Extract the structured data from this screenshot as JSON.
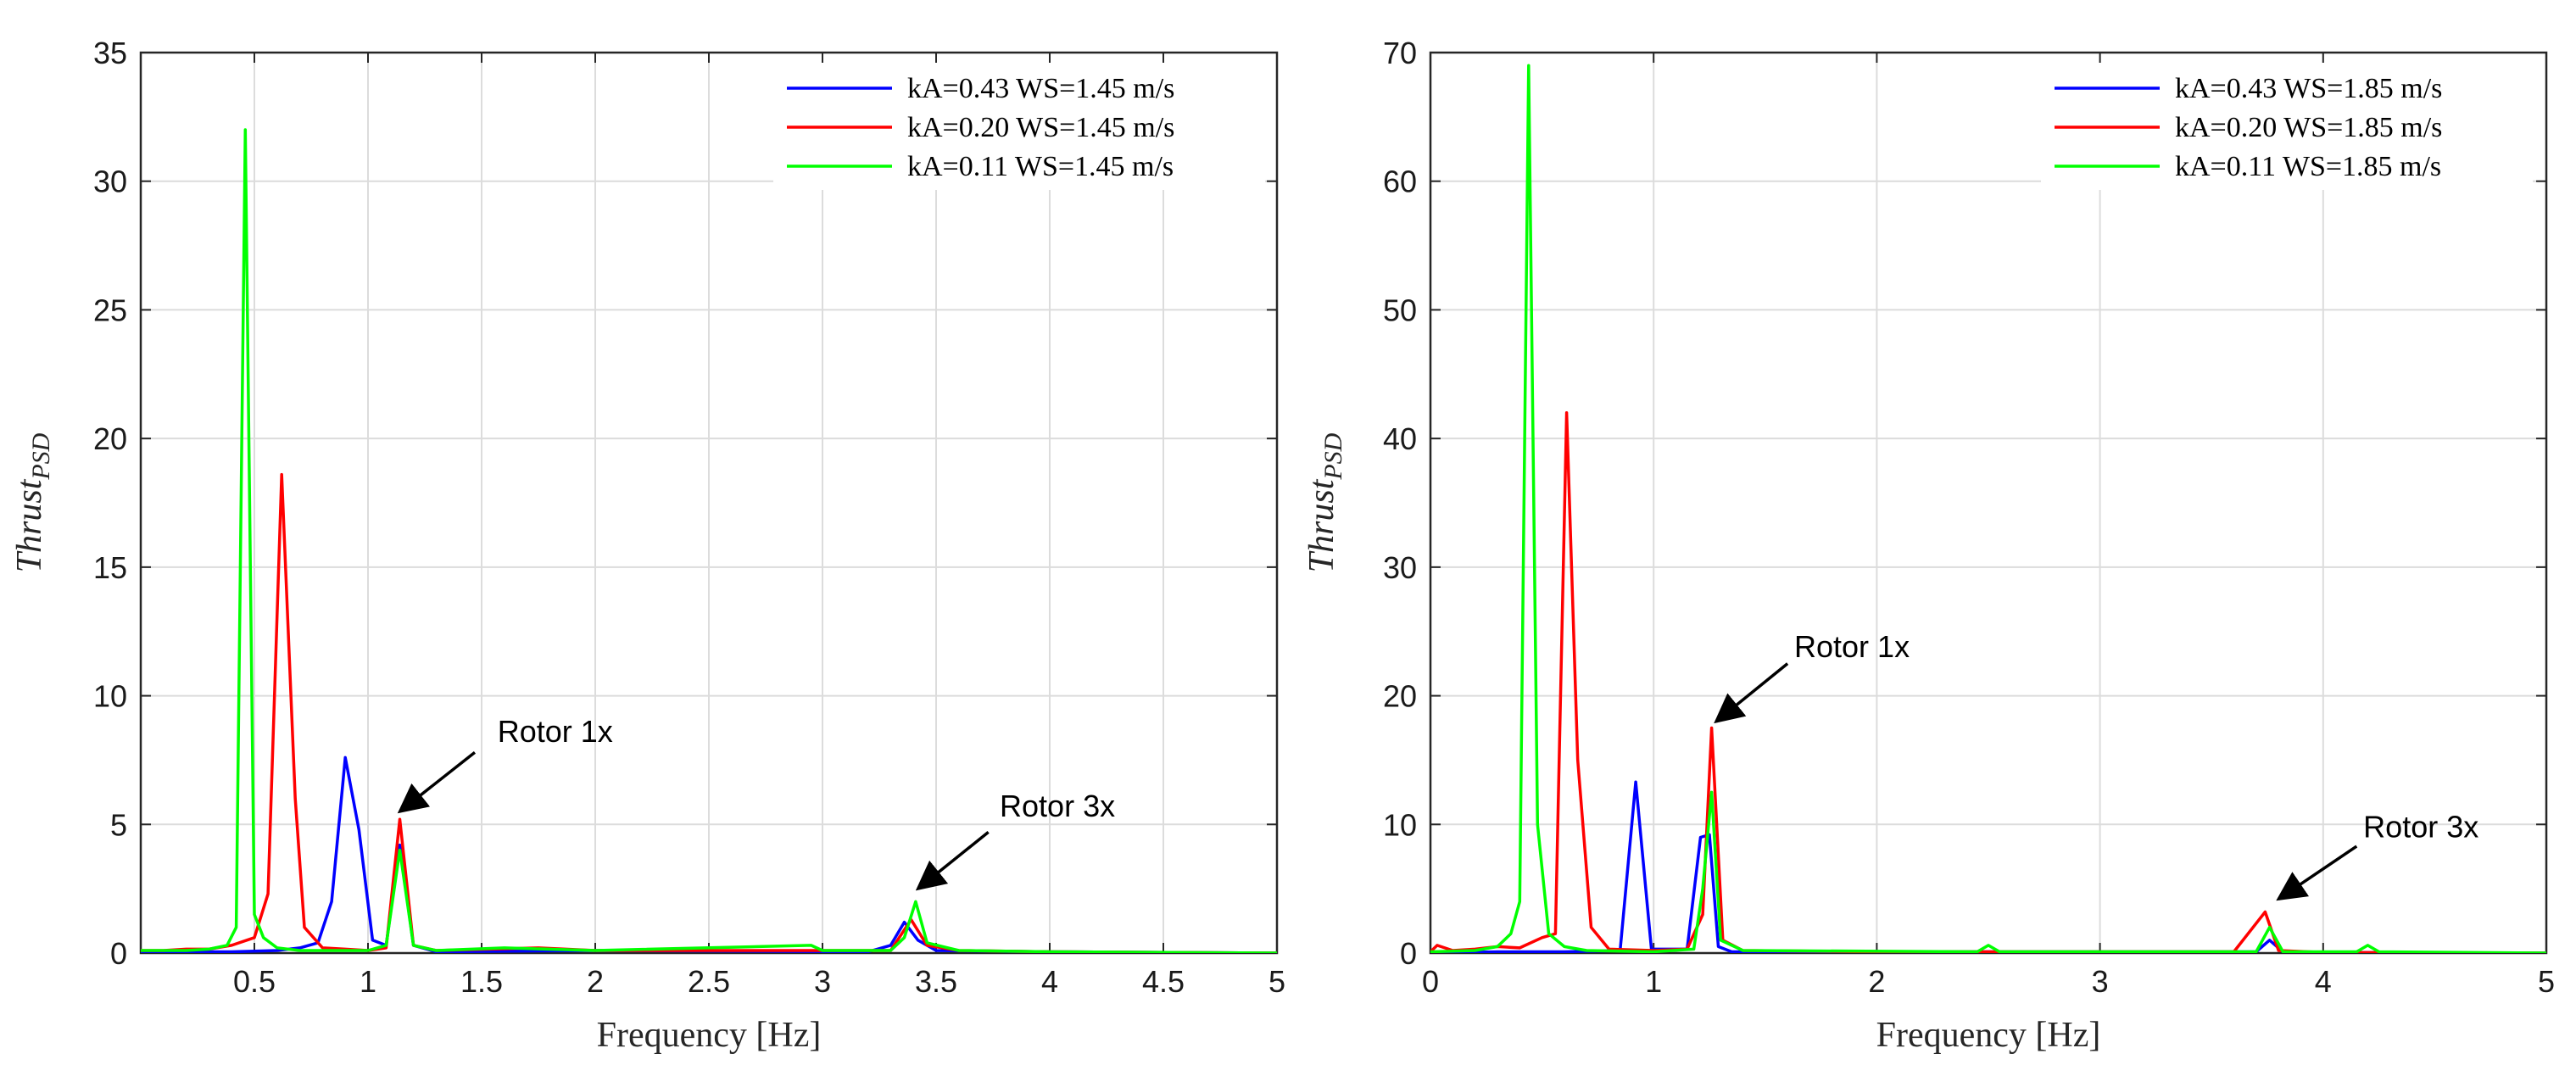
{
  "chart_data": [
    {
      "type": "line",
      "xlabel": "Frequency [Hz]",
      "ylabel": "Thrust",
      "ylabel_subscript": "PSD",
      "xlim": [
        0,
        5
      ],
      "ylim": [
        0,
        35
      ],
      "xticks": [
        0.5,
        1,
        1.5,
        2,
        2.5,
        3,
        3.5,
        4,
        4.5,
        5
      ],
      "xtick_labels": [
        "0.5",
        "1",
        "1.5",
        "2",
        "2.5",
        "3",
        "3.5",
        "4",
        "4.5",
        "5"
      ],
      "yticks": [
        0,
        5,
        10,
        15,
        20,
        25,
        30,
        35
      ],
      "ytick_labels": [
        "0",
        "5",
        "10",
        "15",
        "20",
        "25",
        "30",
        "35"
      ],
      "grid": true,
      "legend_position": "top-right",
      "series": [
        {
          "name": "kA=0.43 WS=1.45 m/s",
          "color": "#0000ff",
          "x": [
            0,
            0.2,
            0.4,
            0.6,
            0.7,
            0.78,
            0.84,
            0.9,
            0.96,
            1.02,
            1.08,
            1.14,
            1.2,
            1.3,
            2.0,
            3.2,
            3.3,
            3.36,
            3.42,
            3.5,
            4.0,
            5.0
          ],
          "y": [
            0,
            0.05,
            0.05,
            0.1,
            0.2,
            0.4,
            2.0,
            7.6,
            4.8,
            0.5,
            0.3,
            4.2,
            0.3,
            0.05,
            0.1,
            0.05,
            0.3,
            1.2,
            0.5,
            0.1,
            0.05,
            0
          ]
        },
        {
          "name": "kA=0.20 WS=1.45 m/s",
          "color": "#ff0000",
          "x": [
            0,
            0.1,
            0.2,
            0.3,
            0.4,
            0.5,
            0.56,
            0.62,
            0.68,
            0.72,
            0.8,
            0.9,
            1.0,
            1.08,
            1.14,
            1.2,
            1.3,
            1.75,
            2.0,
            3.3,
            3.39,
            3.46,
            3.6,
            4.0,
            5.0
          ],
          "y": [
            0.1,
            0.1,
            0.15,
            0.15,
            0.3,
            0.6,
            2.3,
            18.6,
            6.0,
            1.0,
            0.2,
            0.15,
            0.1,
            0.2,
            5.2,
            0.3,
            0.1,
            0.2,
            0.1,
            0.1,
            1.3,
            0.3,
            0.1,
            0.05,
            0
          ]
        },
        {
          "name": "kA=0.11 WS=1.45 m/s",
          "color": "#00ff00",
          "x": [
            0,
            0.2,
            0.3,
            0.38,
            0.42,
            0.46,
            0.5,
            0.54,
            0.6,
            0.7,
            1.0,
            1.08,
            1.14,
            1.2,
            1.3,
            1.6,
            2.0,
            2.95,
            3.0,
            3.3,
            3.36,
            3.41,
            3.46,
            3.6,
            4.0,
            5.0
          ],
          "y": [
            0.1,
            0.1,
            0.15,
            0.3,
            1.0,
            32.0,
            1.5,
            0.6,
            0.2,
            0.1,
            0.1,
            0.3,
            4.0,
            0.3,
            0.1,
            0.2,
            0.1,
            0.3,
            0.1,
            0.1,
            0.6,
            2.0,
            0.4,
            0.1,
            0.05,
            0
          ]
        }
      ],
      "annotations": [
        {
          "text": "Rotor 1x",
          "text_x": 1.57,
          "text_y": 8.2,
          "arrow_from": [
            1.47,
            7.8
          ],
          "arrow_to": [
            1.14,
            5.5
          ]
        },
        {
          "text": "Rotor 3x",
          "text_x": 3.78,
          "text_y": 5.3,
          "arrow_from": [
            3.73,
            4.7
          ],
          "arrow_to": [
            3.42,
            2.5
          ]
        }
      ]
    },
    {
      "type": "line",
      "xlabel": "Frequency [Hz]",
      "ylabel": "Thrust",
      "ylabel_subscript": "PSD",
      "xlim": [
        0,
        5
      ],
      "ylim": [
        0,
        70
      ],
      "xticks": [
        0,
        1,
        2,
        3,
        4,
        5
      ],
      "xtick_labels": [
        "0",
        "1",
        "2",
        "3",
        "4",
        "5"
      ],
      "yticks": [
        0,
        10,
        20,
        30,
        40,
        50,
        60,
        70
      ],
      "ytick_labels": [
        "0",
        "10",
        "20",
        "30",
        "40",
        "50",
        "60",
        "70"
      ],
      "grid": true,
      "legend_position": "top-right",
      "series": [
        {
          "name": "kA=0.43 WS=1.85 m/s",
          "color": "#0000ff",
          "x": [
            0,
            0.3,
            0.6,
            0.85,
            0.92,
            0.99,
            1.15,
            1.21,
            1.25,
            1.29,
            1.35,
            2.5,
            3.7,
            3.76,
            3.82,
            4.0,
            5.0
          ],
          "y": [
            0,
            0.1,
            0.1,
            0.2,
            13.3,
            0.3,
            0.3,
            9.0,
            9.2,
            0.5,
            0.1,
            0.1,
            0.1,
            1.0,
            0.1,
            0.05,
            0
          ]
        },
        {
          "name": "kA=0.20 WS=1.85 m/s",
          "color": "#ff0000",
          "x": [
            0,
            0.03,
            0.1,
            0.2,
            0.3,
            0.4,
            0.5,
            0.56,
            0.61,
            0.66,
            0.72,
            0.8,
            1.0,
            1.15,
            1.22,
            1.26,
            1.31,
            1.4,
            2.0,
            3.6,
            3.74,
            3.8,
            4.0,
            5.0
          ],
          "y": [
            0.1,
            0.6,
            0.2,
            0.3,
            0.5,
            0.4,
            1.2,
            1.5,
            42.0,
            15.0,
            2.0,
            0.3,
            0.2,
            0.3,
            3.0,
            17.5,
            1.0,
            0.2,
            0.1,
            0.1,
            3.2,
            0.2,
            0.05,
            0
          ]
        },
        {
          "name": "kA=0.11 WS=1.85 m/s",
          "color": "#00ff00",
          "x": [
            0,
            0.2,
            0.3,
            0.36,
            0.4,
            0.44,
            0.48,
            0.53,
            0.6,
            0.7,
            1.0,
            1.18,
            1.22,
            1.26,
            1.3,
            1.4,
            2.45,
            2.5,
            2.55,
            3.7,
            3.76,
            3.82,
            4.15,
            4.2,
            4.25,
            5.0
          ],
          "y": [
            0.1,
            0.2,
            0.5,
            1.5,
            4.0,
            69.0,
            10.0,
            1.5,
            0.5,
            0.2,
            0.1,
            0.3,
            5.0,
            12.5,
            1.0,
            0.2,
            0.1,
            0.6,
            0.1,
            0.1,
            2.0,
            0.1,
            0.1,
            0.6,
            0.1,
            0
          ]
        }
      ],
      "annotations": [
        {
          "text": "Rotor 1x",
          "text_x": 1.63,
          "text_y": 23.0,
          "arrow_from": [
            1.6,
            22.5
          ],
          "arrow_to": [
            1.28,
            18.0
          ]
        },
        {
          "text": "Rotor 3x",
          "text_x": 4.18,
          "text_y": 9.0,
          "arrow_from": [
            4.15,
            8.3
          ],
          "arrow_to": [
            3.8,
            4.2
          ]
        }
      ]
    }
  ]
}
